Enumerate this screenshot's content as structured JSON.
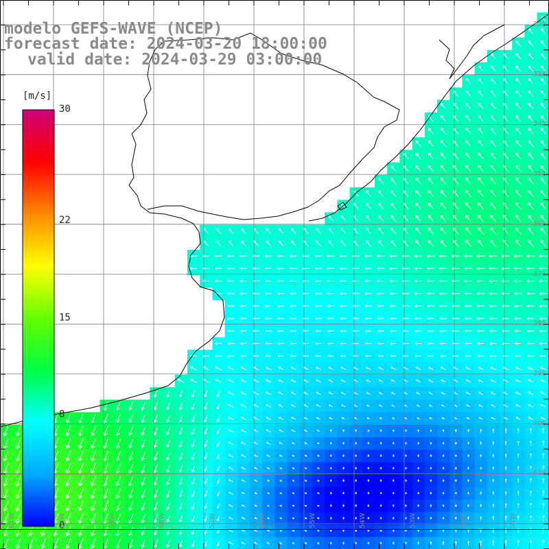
{
  "header": {
    "model_line": "modelo GEFS-WAVE (NCEP)",
    "forecast_line": "forecast date: 2024-03-20 18:00:00",
    "valid_line": "valid date: 2024-03-29 03:00:00"
  },
  "colorbar": {
    "unit": "[m/s]",
    "ticks": [
      "30",
      "22",
      "15",
      "8",
      "0"
    ],
    "tick_values": [
      30,
      22,
      15,
      8,
      0
    ],
    "vmin": 0,
    "vmax": 30,
    "colors": [
      "#0000ff",
      "#00aaff",
      "#00ffff",
      "#00ff44",
      "#66ff00",
      "#ffff00",
      "#ff8800",
      "#ff0000",
      "#cc0077"
    ]
  },
  "grid_labels": {
    "latitudes": [
      "32S",
      "33S",
      "34S",
      "35S",
      "36S",
      "37S",
      "38S",
      "39S",
      "40S",
      "41S"
    ],
    "longitudes": [
      "61W",
      "60W",
      "59W",
      "58W",
      "57W",
      "56W",
      "55W",
      "54W",
      "53W",
      "52W",
      "51W"
    ]
  },
  "colors": {
    "land": "#ffffff",
    "grid": "#7a7a7a",
    "coast": "#000000",
    "title_text": "#8a8a8a",
    "arrows": "#ffffff"
  }
}
